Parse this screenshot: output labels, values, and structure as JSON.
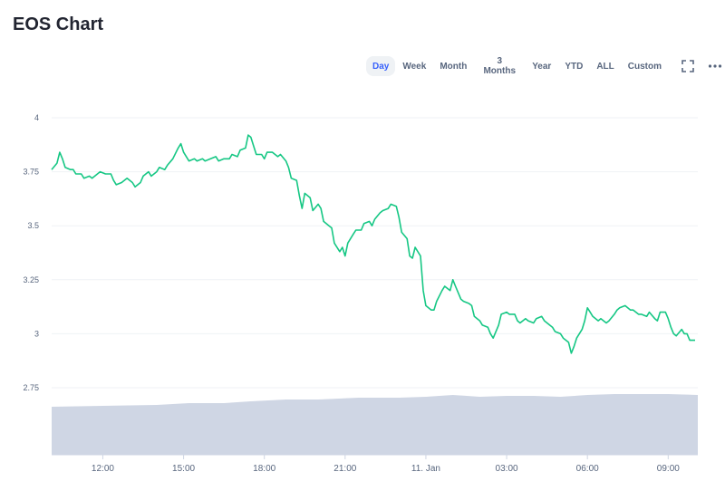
{
  "page": {
    "title": "EOS Chart"
  },
  "toolbar": {
    "ranges": [
      "Day",
      "Week",
      "Month",
      "3 Months",
      "Year",
      "YTD",
      "ALL",
      "Custom"
    ],
    "active": "Day",
    "icons": [
      "fullscreen-icon",
      "more-icon"
    ]
  },
  "colors": {
    "line": "#16c784",
    "volume": "#cfd6e4",
    "grid": "#eff2f5",
    "active_text": "#3861fb",
    "label": "#58667e"
  },
  "chart_data": {
    "type": "line",
    "title": "EOS Chart",
    "xlabel": "",
    "ylabel": "",
    "grid": true,
    "ylim": [
      2.75,
      4
    ],
    "y_ticks": [
      "4",
      "3.75",
      "3.5",
      "3.25",
      "3",
      "2.75"
    ],
    "y_tick_values": [
      4,
      3.75,
      3.5,
      3.25,
      3,
      2.75
    ],
    "x_ticks": [
      "12:00",
      "15:00",
      "18:00",
      "21:00",
      "11. Jan",
      "03:00",
      "06:00",
      "09:00"
    ],
    "x_tick_hours": [
      12,
      15,
      18,
      21,
      24,
      27,
      30,
      33
    ],
    "xlim_hours": [
      10.1,
      34.1
    ],
    "series": [
      {
        "values": [
          [
            10.1,
            3.76
          ],
          [
            10.3,
            3.79
          ],
          [
            10.4,
            3.84
          ],
          [
            10.5,
            3.81
          ],
          [
            10.6,
            3.77
          ],
          [
            10.8,
            3.76
          ],
          [
            10.9,
            3.76
          ],
          [
            11.0,
            3.74
          ],
          [
            11.2,
            3.74
          ],
          [
            11.3,
            3.72
          ],
          [
            11.5,
            3.73
          ],
          [
            11.6,
            3.72
          ],
          [
            11.8,
            3.74
          ],
          [
            11.9,
            3.75
          ],
          [
            12.1,
            3.74
          ],
          [
            12.3,
            3.74
          ],
          [
            12.4,
            3.71
          ],
          [
            12.5,
            3.69
          ],
          [
            12.7,
            3.7
          ],
          [
            12.9,
            3.72
          ],
          [
            13.1,
            3.7
          ],
          [
            13.2,
            3.68
          ],
          [
            13.4,
            3.7
          ],
          [
            13.5,
            3.73
          ],
          [
            13.7,
            3.75
          ],
          [
            13.8,
            3.73
          ],
          [
            14.0,
            3.75
          ],
          [
            14.1,
            3.77
          ],
          [
            14.3,
            3.76
          ],
          [
            14.4,
            3.78
          ],
          [
            14.6,
            3.81
          ],
          [
            14.8,
            3.86
          ],
          [
            14.9,
            3.88
          ],
          [
            15.0,
            3.84
          ],
          [
            15.2,
            3.8
          ],
          [
            15.4,
            3.81
          ],
          [
            15.5,
            3.8
          ],
          [
            15.7,
            3.81
          ],
          [
            15.8,
            3.8
          ],
          [
            16.0,
            3.81
          ],
          [
            16.2,
            3.82
          ],
          [
            16.3,
            3.8
          ],
          [
            16.5,
            3.81
          ],
          [
            16.7,
            3.81
          ],
          [
            16.8,
            3.83
          ],
          [
            17.0,
            3.82
          ],
          [
            17.1,
            3.85
          ],
          [
            17.3,
            3.86
          ],
          [
            17.4,
            3.92
          ],
          [
            17.5,
            3.91
          ],
          [
            17.6,
            3.87
          ],
          [
            17.7,
            3.83
          ],
          [
            17.9,
            3.83
          ],
          [
            18.0,
            3.81
          ],
          [
            18.1,
            3.84
          ],
          [
            18.3,
            3.84
          ],
          [
            18.5,
            3.82
          ],
          [
            18.6,
            3.83
          ],
          [
            18.8,
            3.8
          ],
          [
            18.9,
            3.77
          ],
          [
            19.0,
            3.72
          ],
          [
            19.2,
            3.71
          ],
          [
            19.3,
            3.64
          ],
          [
            19.4,
            3.58
          ],
          [
            19.5,
            3.65
          ],
          [
            19.7,
            3.63
          ],
          [
            19.8,
            3.57
          ],
          [
            20.0,
            3.6
          ],
          [
            20.1,
            3.58
          ],
          [
            20.2,
            3.52
          ],
          [
            20.4,
            3.5
          ],
          [
            20.5,
            3.49
          ],
          [
            20.6,
            3.42
          ],
          [
            20.8,
            3.38
          ],
          [
            20.9,
            3.4
          ],
          [
            21.0,
            3.36
          ],
          [
            21.1,
            3.42
          ],
          [
            21.3,
            3.46
          ],
          [
            21.4,
            3.48
          ],
          [
            21.6,
            3.48
          ],
          [
            21.7,
            3.51
          ],
          [
            21.9,
            3.52
          ],
          [
            22.0,
            3.5
          ],
          [
            22.1,
            3.53
          ],
          [
            22.3,
            3.56
          ],
          [
            22.4,
            3.57
          ],
          [
            22.6,
            3.58
          ],
          [
            22.7,
            3.6
          ],
          [
            22.9,
            3.59
          ],
          [
            23.0,
            3.54
          ],
          [
            23.1,
            3.47
          ],
          [
            23.3,
            3.44
          ],
          [
            23.4,
            3.36
          ],
          [
            23.5,
            3.35
          ],
          [
            23.6,
            3.4
          ],
          [
            23.8,
            3.36
          ],
          [
            23.9,
            3.2
          ],
          [
            24.0,
            3.13
          ],
          [
            24.2,
            3.11
          ],
          [
            24.3,
            3.11
          ],
          [
            24.4,
            3.15
          ],
          [
            24.6,
            3.2
          ],
          [
            24.7,
            3.22
          ],
          [
            24.9,
            3.2
          ],
          [
            25.0,
            3.25
          ],
          [
            25.1,
            3.22
          ],
          [
            25.3,
            3.16
          ],
          [
            25.4,
            3.15
          ],
          [
            25.6,
            3.14
          ],
          [
            25.7,
            3.13
          ],
          [
            25.8,
            3.08
          ],
          [
            26.0,
            3.06
          ],
          [
            26.1,
            3.04
          ],
          [
            26.3,
            3.03
          ],
          [
            26.4,
            3.0
          ],
          [
            26.5,
            2.98
          ],
          [
            26.7,
            3.04
          ],
          [
            26.8,
            3.09
          ],
          [
            27.0,
            3.1
          ],
          [
            27.1,
            3.09
          ],
          [
            27.3,
            3.09
          ],
          [
            27.4,
            3.06
          ],
          [
            27.5,
            3.05
          ],
          [
            27.7,
            3.07
          ],
          [
            27.8,
            3.06
          ],
          [
            28.0,
            3.05
          ],
          [
            28.1,
            3.07
          ],
          [
            28.3,
            3.08
          ],
          [
            28.4,
            3.06
          ],
          [
            28.6,
            3.04
          ],
          [
            28.7,
            3.03
          ],
          [
            28.8,
            3.01
          ],
          [
            29.0,
            3.0
          ],
          [
            29.1,
            2.98
          ],
          [
            29.3,
            2.96
          ],
          [
            29.4,
            2.91
          ],
          [
            29.5,
            2.94
          ],
          [
            29.6,
            2.98
          ],
          [
            29.8,
            3.02
          ],
          [
            29.9,
            3.06
          ],
          [
            30.0,
            3.12
          ],
          [
            30.1,
            3.1
          ],
          [
            30.2,
            3.08
          ],
          [
            30.4,
            3.06
          ],
          [
            30.5,
            3.07
          ],
          [
            30.7,
            3.05
          ],
          [
            30.8,
            3.06
          ],
          [
            31.0,
            3.09
          ],
          [
            31.1,
            3.11
          ],
          [
            31.2,
            3.12
          ],
          [
            31.4,
            3.13
          ],
          [
            31.6,
            3.11
          ],
          [
            31.7,
            3.11
          ],
          [
            31.9,
            3.09
          ],
          [
            32.0,
            3.09
          ],
          [
            32.2,
            3.08
          ],
          [
            32.3,
            3.1
          ],
          [
            32.5,
            3.07
          ],
          [
            32.6,
            3.06
          ],
          [
            32.7,
            3.1
          ],
          [
            32.9,
            3.1
          ],
          [
            33.0,
            3.07
          ],
          [
            33.1,
            3.03
          ],
          [
            33.2,
            3.0
          ],
          [
            33.3,
            2.99
          ],
          [
            33.5,
            3.02
          ],
          [
            33.6,
            3.0
          ],
          [
            33.7,
            3.0
          ],
          [
            33.8,
            2.97
          ],
          [
            34.0,
            2.97
          ]
        ]
      }
    ],
    "volume_rel": [
      [
        10.1,
        0.53
      ],
      [
        12.0,
        0.54
      ],
      [
        14.0,
        0.55
      ],
      [
        15.2,
        0.57
      ],
      [
        16.5,
        0.57
      ],
      [
        17.5,
        0.59
      ],
      [
        18.8,
        0.61
      ],
      [
        20.0,
        0.61
      ],
      [
        21.5,
        0.63
      ],
      [
        23.0,
        0.63
      ],
      [
        24.0,
        0.64
      ],
      [
        25.0,
        0.66
      ],
      [
        26.0,
        0.64
      ],
      [
        27.0,
        0.65
      ],
      [
        28.0,
        0.65
      ],
      [
        29.0,
        0.64
      ],
      [
        30.0,
        0.66
      ],
      [
        31.0,
        0.67
      ],
      [
        32.0,
        0.67
      ],
      [
        33.0,
        0.67
      ],
      [
        34.1,
        0.66
      ]
    ]
  }
}
